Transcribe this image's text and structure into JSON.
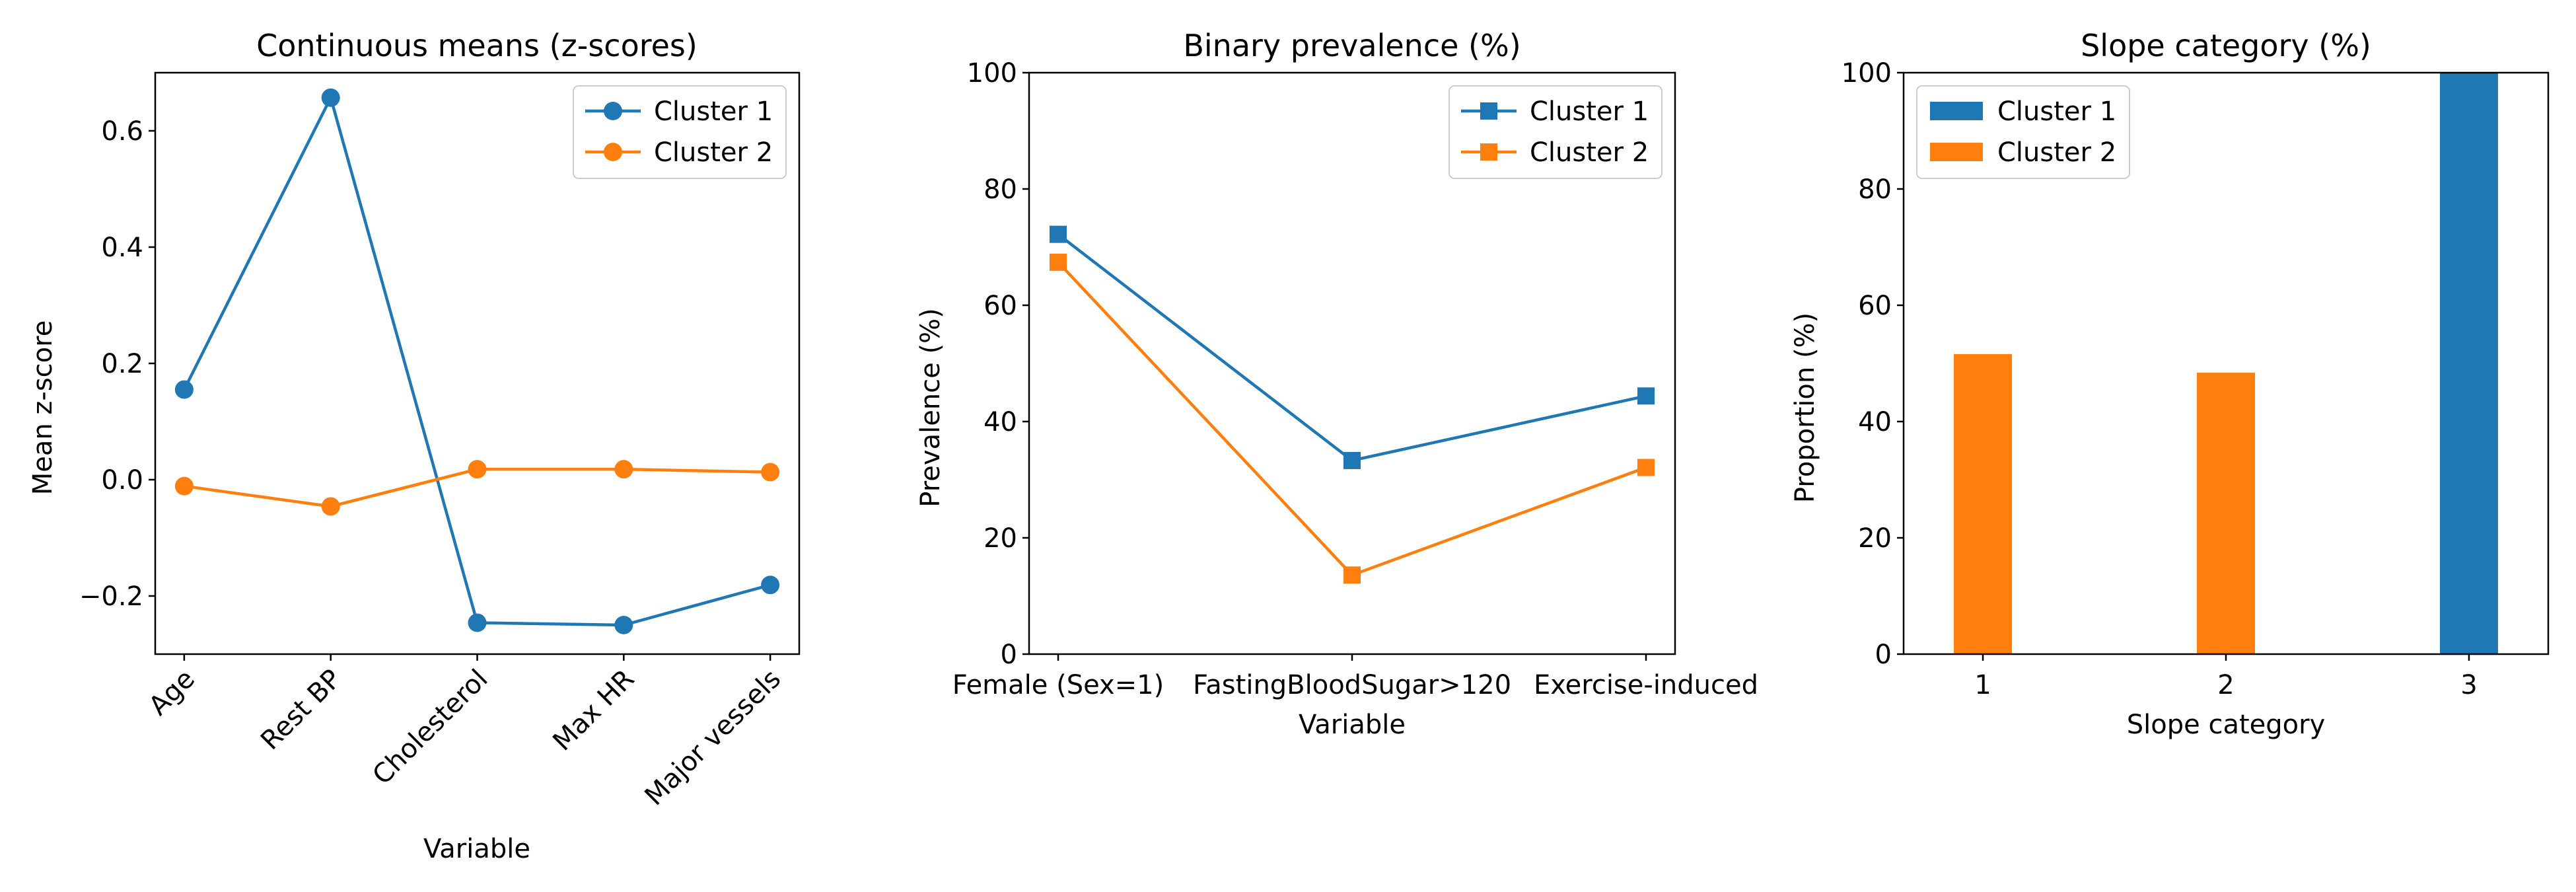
{
  "colors": {
    "cluster1": "#1f77b4",
    "cluster2": "#ff7f0e"
  },
  "chart_data": [
    {
      "type": "line",
      "title": "Continuous means (z-scores)",
      "xlabel": "Variable",
      "ylabel": "Mean z-score",
      "categories": [
        "Age",
        "Rest BP",
        "Cholesterol",
        "Max HR",
        "Major vessels"
      ],
      "ylim": [
        -0.3,
        0.7
      ],
      "yticks": [
        -0.2,
        0.0,
        0.2,
        0.4,
        0.6
      ],
      "ytick_labels": [
        "−0.2",
        "0.0",
        "0.2",
        "0.4",
        "0.6"
      ],
      "marker": "circle",
      "legend_position": "upper right",
      "series": [
        {
          "name": "Cluster 1",
          "values": [
            0.155,
            0.657,
            -0.246,
            -0.25,
            -0.181
          ]
        },
        {
          "name": "Cluster 2",
          "values": [
            -0.011,
            -0.046,
            0.018,
            0.018,
            0.013
          ]
        }
      ]
    },
    {
      "type": "line",
      "title": "Binary prevalence (%)",
      "xlabel": "Variable",
      "ylabel": "Prevalence (%)",
      "categories": [
        "Female (Sex=1)",
        "FastingBloodSugar>120",
        "Exercise-induced"
      ],
      "ylim": [
        0,
        100
      ],
      "yticks": [
        0,
        20,
        40,
        60,
        80,
        100
      ],
      "ytick_labels": [
        "0",
        "20",
        "40",
        "60",
        "80",
        "100"
      ],
      "marker": "square",
      "legend_position": "upper right",
      "series": [
        {
          "name": "Cluster 1",
          "values": [
            72.2,
            33.3,
            44.4
          ]
        },
        {
          "name": "Cluster 2",
          "values": [
            67.4,
            13.6,
            32.1
          ]
        }
      ]
    },
    {
      "type": "bar",
      "title": "Slope category (%)",
      "xlabel": "Slope category",
      "ylabel": "Proportion (%)",
      "categories": [
        "1",
        "2",
        "3"
      ],
      "ylim": [
        0,
        100
      ],
      "yticks": [
        0,
        20,
        40,
        60,
        80,
        100
      ],
      "ytick_labels": [
        "0",
        "20",
        "40",
        "60",
        "80",
        "100"
      ],
      "legend_position": "upper left",
      "series": [
        {
          "name": "Cluster 1",
          "values": [
            0,
            0,
            100
          ]
        },
        {
          "name": "Cluster 2",
          "values": [
            51.6,
            48.4,
            0
          ]
        }
      ]
    }
  ]
}
